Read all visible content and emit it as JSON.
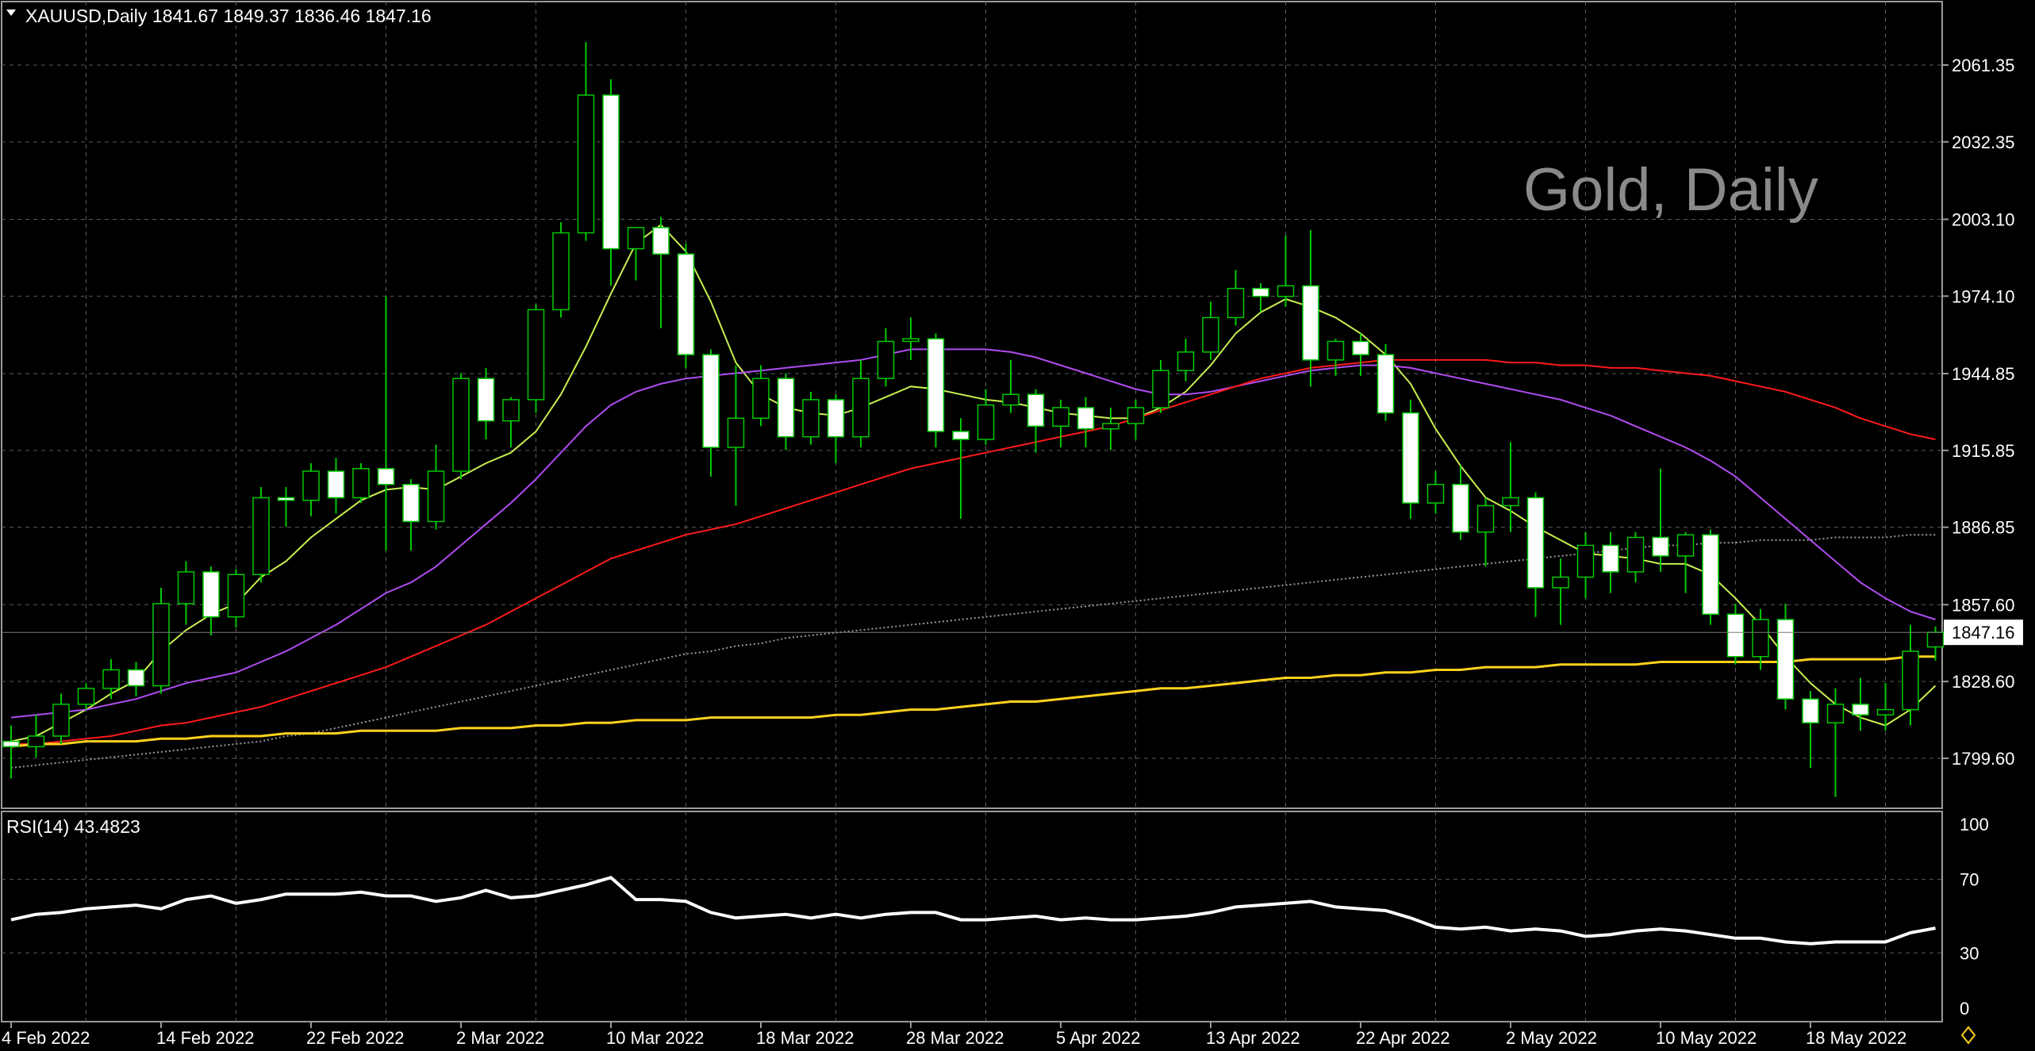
{
  "header": {
    "symbol": "XAUUSD,Daily",
    "ohlc": "1841.67 1849.37 1836.46 1847.16"
  },
  "watermark": "Gold, Daily",
  "price_axis": {
    "ticks": [
      "2061.35",
      "2032.35",
      "2003.10",
      "1974.10",
      "1944.85",
      "1915.85",
      "1886.85",
      "1857.60",
      "1828.60",
      "1799.60"
    ],
    "current_price_label": "1847.16"
  },
  "rsi_panel": {
    "label": "RSI(14) 43.4823",
    "ticks": [
      "100",
      "70",
      "30",
      "0"
    ]
  },
  "time_axis": {
    "labels": [
      "4 Feb 2022",
      "14 Feb 2022",
      "22 Feb 2022",
      "2 Mar 2022",
      "10 Mar 2022",
      "18 Mar 2022",
      "28 Mar 2022",
      "5 Apr 2022",
      "13 Apr 2022",
      "22 Apr 2022",
      "2 May 2022",
      "10 May 2022",
      "18 May 2022"
    ]
  },
  "colors": {
    "background": "#000000",
    "grid": "#5a5a5a",
    "bull_candle": "#000000",
    "bear_candle": "#ffffff",
    "candle_outline": "#00c800",
    "ma_fast": "#c8f050",
    "ma_mid": "#b04cf0",
    "ma_slow": "#ff1a1a",
    "ma_200": "#9a9a9a",
    "ma_yellow": "#ffd21e",
    "rsi_line": "#ffffff"
  },
  "chart_data": {
    "type": "candlestick",
    "title": "XAUUSD,Daily",
    "ylim": [
      1785,
      2085
    ],
    "candles": [
      {
        "date": "2022-02-03",
        "o": 1806,
        "h": 1812,
        "l": 1792,
        "c": 1804
      },
      {
        "date": "2022-02-04",
        "o": 1804,
        "h": 1816,
        "l": 1800,
        "c": 1808
      },
      {
        "date": "2022-02-07",
        "o": 1808,
        "h": 1824,
        "l": 1805,
        "c": 1820
      },
      {
        "date": "2022-02-08",
        "o": 1820,
        "h": 1828,
        "l": 1818,
        "c": 1826
      },
      {
        "date": "2022-02-09",
        "o": 1826,
        "h": 1837,
        "l": 1822,
        "c": 1833
      },
      {
        "date": "2022-02-10",
        "o": 1833,
        "h": 1836,
        "l": 1823,
        "c": 1827
      },
      {
        "date": "2022-02-11",
        "o": 1827,
        "h": 1864,
        "l": 1824,
        "c": 1858
      },
      {
        "date": "2022-02-14",
        "o": 1858,
        "h": 1874,
        "l": 1850,
        "c": 1870
      },
      {
        "date": "2022-02-15",
        "o": 1870,
        "h": 1872,
        "l": 1846,
        "c": 1853
      },
      {
        "date": "2022-02-16",
        "o": 1853,
        "h": 1871,
        "l": 1849,
        "c": 1869
      },
      {
        "date": "2022-02-17",
        "o": 1869,
        "h": 1902,
        "l": 1866,
        "c": 1898
      },
      {
        "date": "2022-02-18",
        "o": 1898,
        "h": 1902,
        "l": 1887,
        "c": 1897
      },
      {
        "date": "2022-02-21",
        "o": 1897,
        "h": 1911,
        "l": 1891,
        "c": 1908
      },
      {
        "date": "2022-02-22",
        "o": 1908,
        "h": 1913,
        "l": 1892,
        "c": 1898
      },
      {
        "date": "2022-02-23",
        "o": 1898,
        "h": 1911,
        "l": 1896,
        "c": 1909
      },
      {
        "date": "2022-02-24",
        "o": 1909,
        "h": 1974,
        "l": 1878,
        "c": 1903
      },
      {
        "date": "2022-02-25",
        "o": 1903,
        "h": 1905,
        "l": 1878,
        "c": 1889
      },
      {
        "date": "2022-02-28",
        "o": 1889,
        "h": 1918,
        "l": 1886,
        "c": 1908
      },
      {
        "date": "2022-03-01",
        "o": 1908,
        "h": 1945,
        "l": 1905,
        "c": 1943
      },
      {
        "date": "2022-03-02",
        "o": 1943,
        "h": 1947,
        "l": 1920,
        "c": 1927
      },
      {
        "date": "2022-03-03",
        "o": 1927,
        "h": 1936,
        "l": 1917,
        "c": 1935
      },
      {
        "date": "2022-03-04",
        "o": 1935,
        "h": 1971,
        "l": 1930,
        "c": 1969
      },
      {
        "date": "2022-03-07",
        "o": 1969,
        "h": 2002,
        "l": 1966,
        "c": 1998
      },
      {
        "date": "2022-03-08",
        "o": 1998,
        "h": 2070,
        "l": 1995,
        "c": 2050
      },
      {
        "date": "2022-03-09",
        "o": 2050,
        "h": 2056,
        "l": 1978,
        "c": 1992
      },
      {
        "date": "2022-03-10",
        "o": 1992,
        "h": 2000,
        "l": 1980,
        "c": 2000
      },
      {
        "date": "2022-03-11",
        "o": 2000,
        "h": 2004,
        "l": 1962,
        "c": 1990
      },
      {
        "date": "2022-03-14",
        "o": 1990,
        "h": 1994,
        "l": 1947,
        "c": 1952
      },
      {
        "date": "2022-03-15",
        "o": 1952,
        "h": 1954,
        "l": 1906,
        "c": 1917
      },
      {
        "date": "2022-03-16",
        "o": 1917,
        "h": 1948,
        "l": 1895,
        "c": 1928
      },
      {
        "date": "2022-03-17",
        "o": 1928,
        "h": 1948,
        "l": 1925,
        "c": 1943
      },
      {
        "date": "2022-03-18",
        "o": 1943,
        "h": 1945,
        "l": 1916,
        "c": 1921
      },
      {
        "date": "2022-03-21",
        "o": 1921,
        "h": 1938,
        "l": 1918,
        "c": 1935
      },
      {
        "date": "2022-03-22",
        "o": 1935,
        "h": 1937,
        "l": 1911,
        "c": 1921
      },
      {
        "date": "2022-03-23",
        "o": 1921,
        "h": 1950,
        "l": 1917,
        "c": 1943
      },
      {
        "date": "2022-03-24",
        "o": 1943,
        "h": 1962,
        "l": 1940,
        "c": 1957
      },
      {
        "date": "2022-03-25",
        "o": 1957,
        "h": 1966,
        "l": 1950,
        "c": 1958
      },
      {
        "date": "2022-03-28",
        "o": 1958,
        "h": 1960,
        "l": 1917,
        "c": 1923
      },
      {
        "date": "2022-03-29",
        "o": 1923,
        "h": 1928,
        "l": 1890,
        "c": 1920
      },
      {
        "date": "2022-03-30",
        "o": 1920,
        "h": 1939,
        "l": 1918,
        "c": 1933
      },
      {
        "date": "2022-03-31",
        "o": 1933,
        "h": 1950,
        "l": 1930,
        "c": 1937
      },
      {
        "date": "2022-04-01",
        "o": 1937,
        "h": 1939,
        "l": 1915,
        "c": 1925
      },
      {
        "date": "2022-04-04",
        "o": 1925,
        "h": 1935,
        "l": 1917,
        "c": 1932
      },
      {
        "date": "2022-04-05",
        "o": 1932,
        "h": 1936,
        "l": 1917,
        "c": 1924
      },
      {
        "date": "2022-04-06",
        "o": 1924,
        "h": 1932,
        "l": 1916,
        "c": 1926
      },
      {
        "date": "2022-04-07",
        "o": 1926,
        "h": 1935,
        "l": 1920,
        "c": 1932
      },
      {
        "date": "2022-04-08",
        "o": 1932,
        "h": 1950,
        "l": 1930,
        "c": 1946
      },
      {
        "date": "2022-04-11",
        "o": 1946,
        "h": 1958,
        "l": 1942,
        "c": 1953
      },
      {
        "date": "2022-04-12",
        "o": 1953,
        "h": 1972,
        "l": 1950,
        "c": 1966
      },
      {
        "date": "2022-04-13",
        "o": 1966,
        "h": 1984,
        "l": 1963,
        "c": 1977
      },
      {
        "date": "2022-04-14",
        "o": 1977,
        "h": 1979,
        "l": 1968,
        "c": 1974
      },
      {
        "date": "2022-04-15",
        "o": 1974,
        "h": 1997,
        "l": 1970,
        "c": 1978
      },
      {
        "date": "2022-04-18",
        "o": 1978,
        "h": 1999,
        "l": 1940,
        "c": 1950
      },
      {
        "date": "2022-04-19",
        "o": 1950,
        "h": 1958,
        "l": 1944,
        "c": 1957
      },
      {
        "date": "2022-04-20",
        "o": 1957,
        "h": 1960,
        "l": 1944,
        "c": 1952
      },
      {
        "date": "2022-04-21",
        "o": 1952,
        "h": 1956,
        "l": 1927,
        "c": 1930
      },
      {
        "date": "2022-04-22",
        "o": 1930,
        "h": 1935,
        "l": 1890,
        "c": 1896
      },
      {
        "date": "2022-04-25",
        "o": 1896,
        "h": 1908,
        "l": 1892,
        "c": 1903
      },
      {
        "date": "2022-04-26",
        "o": 1903,
        "h": 1910,
        "l": 1882,
        "c": 1885
      },
      {
        "date": "2022-04-27",
        "o": 1885,
        "h": 1898,
        "l": 1872,
        "c": 1895
      },
      {
        "date": "2022-04-28",
        "o": 1895,
        "h": 1919,
        "l": 1885,
        "c": 1898
      },
      {
        "date": "2022-04-29",
        "o": 1898,
        "h": 1900,
        "l": 1853,
        "c": 1864
      },
      {
        "date": "2022-05-02",
        "o": 1864,
        "h": 1875,
        "l": 1850,
        "c": 1868
      },
      {
        "date": "2022-05-03",
        "o": 1868,
        "h": 1885,
        "l": 1860,
        "c": 1880
      },
      {
        "date": "2022-05-04",
        "o": 1880,
        "h": 1885,
        "l": 1862,
        "c": 1870
      },
      {
        "date": "2022-05-05",
        "o": 1870,
        "h": 1885,
        "l": 1866,
        "c": 1883
      },
      {
        "date": "2022-05-06",
        "o": 1883,
        "h": 1909,
        "l": 1870,
        "c": 1876
      },
      {
        "date": "2022-05-09",
        "o": 1876,
        "h": 1885,
        "l": 1862,
        "c": 1884
      },
      {
        "date": "2022-05-10",
        "o": 1884,
        "h": 1886,
        "l": 1850,
        "c": 1854
      },
      {
        "date": "2022-05-11",
        "o": 1854,
        "h": 1858,
        "l": 1835,
        "c": 1838
      },
      {
        "date": "2022-05-12",
        "o": 1838,
        "h": 1856,
        "l": 1833,
        "c": 1852
      },
      {
        "date": "2022-05-13",
        "o": 1852,
        "h": 1858,
        "l": 1818,
        "c": 1822
      },
      {
        "date": "2022-05-16",
        "o": 1822,
        "h": 1825,
        "l": 1796,
        "c": 1813
      },
      {
        "date": "2022-05-17",
        "o": 1813,
        "h": 1826,
        "l": 1785,
        "c": 1820
      },
      {
        "date": "2022-05-18",
        "o": 1820,
        "h": 1830,
        "l": 1810,
        "c": 1816
      },
      {
        "date": "2022-05-19",
        "o": 1816,
        "h": 1828,
        "l": 1810,
        "c": 1818
      },
      {
        "date": "2022-05-20",
        "o": 1818,
        "h": 1850,
        "l": 1812,
        "c": 1840
      },
      {
        "date": "2022-05-23",
        "o": 1841.67,
        "h": 1849.37,
        "l": 1836.46,
        "c": 1847.16
      }
    ],
    "series": [
      {
        "color": "#c8f050",
        "values": [
          1806,
          1808,
          1813,
          1818,
          1824,
          1829,
          1840,
          1848,
          1854,
          1858,
          1868,
          1874,
          1883,
          1890,
          1897,
          1901,
          1902,
          1901,
          1906,
          1911,
          1915,
          1923,
          1937,
          1955,
          1975,
          1994,
          2001,
          1991,
          1972,
          1949,
          1937,
          1932,
          1930,
          1929,
          1932,
          1936,
          1940,
          1939,
          1937,
          1935,
          1934,
          1932,
          1930,
          1929,
          1928,
          1928,
          1932,
          1938,
          1948,
          1960,
          1968,
          1973,
          1970,
          1966,
          1960,
          1952,
          1941,
          1924,
          1910,
          1898,
          1893,
          1887,
          1882,
          1877,
          1876,
          1875,
          1873,
          1873,
          1869,
          1860,
          1850,
          1838,
          1828,
          1820,
          1815,
          1812,
          1818,
          1827
        ]
      },
      {
        "color": "#b04cf0",
        "values": [
          1815,
          1816,
          1817,
          1818,
          1820,
          1822,
          1825,
          1828,
          1830,
          1832,
          1836,
          1840,
          1845,
          1850,
          1856,
          1862,
          1866,
          1872,
          1880,
          1888,
          1896,
          1905,
          1915,
          1925,
          1933,
          1938,
          1941,
          1943,
          1944,
          1945,
          1946,
          1947,
          1948,
          1949,
          1950,
          1952,
          1954,
          1954,
          1954,
          1954,
          1953,
          1951,
          1948,
          1945,
          1942,
          1939,
          1937,
          1937,
          1938,
          1940,
          1942,
          1944,
          1946,
          1947,
          1948,
          1948,
          1947,
          1945,
          1943,
          1941,
          1939,
          1937,
          1935,
          1932,
          1929,
          1925,
          1921,
          1917,
          1912,
          1906,
          1898,
          1890,
          1882,
          1874,
          1866,
          1860,
          1855,
          1852
        ]
      },
      {
        "color": "#ff1a1a",
        "values": [
          1805,
          1805,
          1806,
          1807,
          1808,
          1810,
          1812,
          1813,
          1815,
          1817,
          1819,
          1822,
          1825,
          1828,
          1831,
          1834,
          1838,
          1842,
          1846,
          1850,
          1855,
          1860,
          1865,
          1870,
          1875,
          1878,
          1881,
          1884,
          1886,
          1888,
          1891,
          1894,
          1897,
          1900,
          1903,
          1906,
          1909,
          1911,
          1913,
          1915,
          1917,
          1919,
          1921,
          1923,
          1925,
          1928,
          1931,
          1934,
          1937,
          1940,
          1943,
          1945,
          1947,
          1948,
          1949,
          1950,
          1950,
          1950,
          1950,
          1950,
          1949,
          1949,
          1948,
          1948,
          1947,
          1947,
          1946,
          1945,
          1944,
          1942,
          1940,
          1938,
          1935,
          1932,
          1928,
          1925,
          1922,
          1920
        ]
      },
      {
        "color": "#9a9a9a",
        "values": [
          1796,
          1797,
          1798,
          1799,
          1800,
          1801,
          1802,
          1803,
          1804,
          1805,
          1806,
          1808,
          1809,
          1811,
          1813,
          1815,
          1817,
          1819,
          1821,
          1823,
          1825,
          1827,
          1829,
          1831,
          1833,
          1835,
          1837,
          1839,
          1840,
          1842,
          1843,
          1845,
          1846,
          1847,
          1848,
          1849,
          1850,
          1851,
          1852,
          1853,
          1854,
          1855,
          1856,
          1857,
          1858,
          1859,
          1860,
          1861,
          1862,
          1863,
          1864,
          1865,
          1866,
          1867,
          1868,
          1869,
          1870,
          1871,
          1872,
          1873,
          1874,
          1875,
          1876,
          1877,
          1878,
          1879,
          1880,
          1880,
          1881,
          1881,
          1882,
          1882,
          1882,
          1883,
          1883,
          1883,
          1884,
          1884
        ]
      },
      {
        "color": "#ffd21e",
        "values": [
          1804,
          1805,
          1805,
          1806,
          1806,
          1806,
          1807,
          1807,
          1808,
          1808,
          1808,
          1809,
          1809,
          1809,
          1810,
          1810,
          1810,
          1810,
          1811,
          1811,
          1811,
          1812,
          1812,
          1813,
          1813,
          1814,
          1814,
          1814,
          1815,
          1815,
          1815,
          1815,
          1815,
          1816,
          1816,
          1817,
          1818,
          1818,
          1819,
          1820,
          1821,
          1821,
          1822,
          1823,
          1824,
          1825,
          1826,
          1826,
          1827,
          1828,
          1829,
          1830,
          1830,
          1831,
          1831,
          1832,
          1832,
          1833,
          1833,
          1834,
          1834,
          1834,
          1835,
          1835,
          1835,
          1835,
          1836,
          1836,
          1836,
          1836,
          1836,
          1836,
          1837,
          1837,
          1837,
          1837,
          1838,
          1838
        ]
      }
    ],
    "rsi": {
      "name": "RSI(14)",
      "ylim": [
        0,
        100
      ],
      "values": [
        48,
        51,
        52,
        54,
        55,
        56,
        54,
        59,
        61,
        57,
        59,
        62,
        62,
        62,
        63,
        61,
        61,
        58,
        60,
        64,
        60,
        61,
        64,
        67,
        71,
        59,
        59,
        58,
        52,
        49,
        50,
        51,
        49,
        51,
        49,
        51,
        52,
        52,
        48,
        48,
        49,
        50,
        48,
        49,
        48,
        48,
        49,
        50,
        52,
        55,
        56,
        57,
        58,
        55,
        54,
        53,
        49,
        44,
        43,
        44,
        42,
        43,
        42,
        39,
        40,
        42,
        43,
        42,
        40,
        38,
        38,
        36,
        35,
        36,
        36,
        36,
        41,
        43.4823
      ]
    },
    "xlabel": "",
    "ylabel": ""
  }
}
